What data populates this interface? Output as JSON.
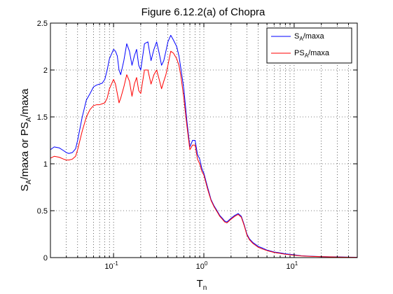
{
  "chart_data": {
    "type": "line",
    "title": "Figure 6.12.2(a) of Chopra",
    "xlabel": {
      "main": "T",
      "sub": "n"
    },
    "ylabel": {
      "parts": [
        "S",
        "A",
        "/maxa or PS",
        "A",
        "/maxa"
      ]
    },
    "xscale": "log",
    "xlim": [
      0.02,
      50
    ],
    "ylim": [
      0,
      2.5
    ],
    "grid": true,
    "legend_position": "top-right",
    "yticks": [
      "0",
      "0.5",
      "1",
      "1.5",
      "2",
      "2.5"
    ],
    "xticks": [
      {
        "base": "10",
        "exp": "-1",
        "value": 0.1
      },
      {
        "base": "10",
        "exp": "0",
        "value": 1
      },
      {
        "base": "10",
        "exp": "1",
        "value": 10
      }
    ],
    "series": [
      {
        "name": "S_A/maxa",
        "legend": {
          "main": "S",
          "sub": "A",
          "rest": "/maxa"
        },
        "color": "#0000ff",
        "x": [
          0.02,
          0.022,
          0.025,
          0.028,
          0.03,
          0.032,
          0.035,
          0.038,
          0.04,
          0.045,
          0.05,
          0.055,
          0.06,
          0.065,
          0.07,
          0.075,
          0.08,
          0.085,
          0.09,
          0.1,
          0.105,
          0.11,
          0.115,
          0.12,
          0.13,
          0.14,
          0.15,
          0.16,
          0.17,
          0.18,
          0.19,
          0.2,
          0.22,
          0.24,
          0.26,
          0.28,
          0.3,
          0.32,
          0.34,
          0.36,
          0.38,
          0.4,
          0.43,
          0.46,
          0.5,
          0.53,
          0.56,
          0.6,
          0.65,
          0.7,
          0.75,
          0.8,
          0.85,
          0.9,
          0.95,
          1.0,
          1.1,
          1.2,
          1.3,
          1.4,
          1.5,
          1.6,
          1.7,
          1.8,
          1.9,
          2.0,
          2.2,
          2.4,
          2.6,
          2.8,
          3.0,
          3.2,
          3.5,
          4.0,
          4.5,
          5.0,
          6.0,
          7.0,
          8.0,
          10,
          12,
          15,
          20,
          25,
          30,
          40,
          50
        ],
        "y": [
          1.15,
          1.18,
          1.17,
          1.14,
          1.12,
          1.11,
          1.12,
          1.16,
          1.25,
          1.5,
          1.68,
          1.75,
          1.82,
          1.84,
          1.85,
          1.86,
          1.9,
          2.0,
          2.12,
          2.22,
          2.2,
          2.15,
          2.0,
          1.95,
          2.1,
          2.28,
          2.2,
          2.05,
          2.15,
          2.22,
          2.05,
          2.0,
          2.28,
          2.3,
          2.1,
          2.22,
          2.3,
          2.18,
          2.05,
          2.1,
          2.2,
          2.3,
          2.37,
          2.32,
          2.25,
          2.15,
          2.0,
          1.8,
          1.45,
          1.18,
          1.25,
          1.25,
          1.1,
          1.05,
          0.95,
          0.9,
          0.75,
          0.62,
          0.55,
          0.5,
          0.45,
          0.42,
          0.39,
          0.38,
          0.4,
          0.42,
          0.45,
          0.47,
          0.44,
          0.35,
          0.25,
          0.2,
          0.16,
          0.12,
          0.1,
          0.08,
          0.06,
          0.05,
          0.04,
          0.03,
          0.02,
          0.015,
          0.01,
          0.008,
          0.007,
          0.005,
          0.004
        ]
      },
      {
        "name": "PS_A/maxa",
        "legend": {
          "main": "PS",
          "sub": "A",
          "rest": "/maxa"
        },
        "color": "#ff0000",
        "x": [
          0.02,
          0.022,
          0.025,
          0.028,
          0.03,
          0.032,
          0.035,
          0.038,
          0.04,
          0.045,
          0.05,
          0.055,
          0.06,
          0.065,
          0.07,
          0.075,
          0.08,
          0.085,
          0.09,
          0.1,
          0.105,
          0.11,
          0.115,
          0.12,
          0.13,
          0.14,
          0.15,
          0.16,
          0.17,
          0.18,
          0.19,
          0.2,
          0.22,
          0.24,
          0.26,
          0.28,
          0.3,
          0.32,
          0.34,
          0.36,
          0.38,
          0.4,
          0.43,
          0.46,
          0.5,
          0.53,
          0.56,
          0.6,
          0.65,
          0.7,
          0.75,
          0.8,
          0.85,
          0.9,
          0.95,
          1.0,
          1.1,
          1.2,
          1.3,
          1.4,
          1.5,
          1.6,
          1.7,
          1.8,
          1.9,
          2.0,
          2.2,
          2.4,
          2.6,
          2.8,
          3.0,
          3.2,
          3.5,
          4.0,
          4.5,
          5.0,
          6.0,
          7.0,
          8.0,
          10,
          12,
          15,
          20,
          25,
          30,
          40,
          50
        ],
        "y": [
          1.06,
          1.08,
          1.07,
          1.05,
          1.04,
          1.04,
          1.05,
          1.08,
          1.15,
          1.35,
          1.5,
          1.58,
          1.62,
          1.63,
          1.63,
          1.64,
          1.65,
          1.7,
          1.8,
          1.9,
          1.85,
          1.75,
          1.65,
          1.7,
          1.82,
          1.95,
          1.88,
          1.72,
          1.85,
          1.92,
          1.78,
          1.75,
          2.0,
          2.0,
          1.85,
          1.95,
          2.0,
          1.9,
          1.8,
          1.88,
          1.95,
          2.05,
          2.2,
          2.18,
          2.12,
          2.05,
          1.92,
          1.7,
          1.4,
          1.15,
          1.2,
          1.2,
          1.05,
          1.0,
          0.92,
          0.88,
          0.73,
          0.61,
          0.54,
          0.49,
          0.44,
          0.41,
          0.38,
          0.37,
          0.39,
          0.41,
          0.44,
          0.46,
          0.43,
          0.34,
          0.24,
          0.19,
          0.15,
          0.11,
          0.09,
          0.075,
          0.055,
          0.045,
          0.035,
          0.025,
          0.018,
          0.013,
          0.009,
          0.007,
          0.006,
          0.004,
          0.003
        ]
      }
    ]
  }
}
